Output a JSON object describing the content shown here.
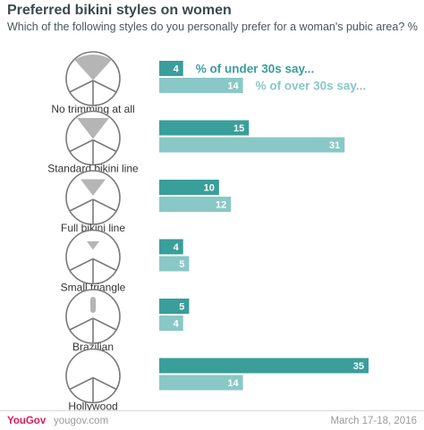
{
  "header": {
    "title": "Preferred bikini styles on women",
    "subtitle": "Which of the following styles do you personally prefer for a woman's pubic area? %"
  },
  "footer": {
    "brand": "YouGov",
    "site": "yougov.com",
    "date": "March 17-18, 2016"
  },
  "colors": {
    "under30": "#3a9e9b",
    "over30": "#89c8c6",
    "icon_stroke": "#7a7a7a",
    "icon_fill": "#b5b5b5"
  },
  "chart_data": {
    "type": "bar",
    "orientation": "horizontal",
    "title": "Preferred bikini styles on women",
    "subtitle": "Which of the following styles do you personally prefer for a woman's pubic area? %",
    "categories": [
      "No trimming at all",
      "Standard bikini line",
      "Full bikini line",
      "Small triangle",
      "Brazilian",
      "Hollywood"
    ],
    "icons": [
      "no-trimming-icon",
      "standard-bikini-line-icon",
      "full-bikini-line-icon",
      "small-triangle-icon",
      "brazilian-icon",
      "hollywood-icon"
    ],
    "series": [
      {
        "name": "% of under 30s say...",
        "values": [
          4,
          15,
          10,
          4,
          5,
          35
        ]
      },
      {
        "name": "% of over 30s say...",
        "values": [
          14,
          31,
          12,
          5,
          4,
          14
        ]
      }
    ],
    "xlim": [
      0,
      35
    ],
    "grid": false,
    "legend": "inline-top"
  }
}
